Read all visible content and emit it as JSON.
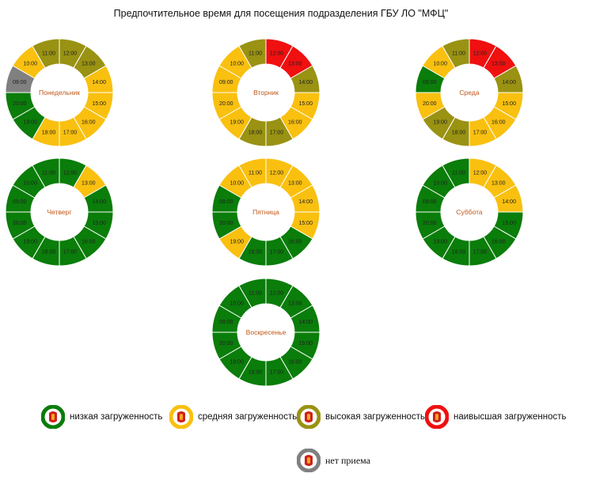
{
  "title": "Предпочтительное время для посещения подразделения ГБУ ЛО \"МФЦ\"",
  "colors": {
    "low": "#0a7d0a",
    "medium": "#f9c00f",
    "high": "#999212",
    "highest": "#f01010",
    "closed": "#808080",
    "day_label": "#c0581a",
    "separator": "#ffffff"
  },
  "legend": [
    {
      "key": "low",
      "label": "низкая загруженность"
    },
    {
      "key": "medium",
      "label": "средняя загруженность"
    },
    {
      "key": "high",
      "label": "высокая загруженность"
    },
    {
      "key": "highest",
      "label": "наивысшая загруженность"
    },
    {
      "key": "closed",
      "label": "нет приема"
    }
  ],
  "chart_data": {
    "type": "donut",
    "hours": [
      "09:00",
      "10:00",
      "11:00",
      "12:00",
      "13:00",
      "14:00",
      "15:00",
      "16:00",
      "17:00",
      "18:00",
      "19:00",
      "20:00"
    ],
    "days": [
      {
        "name": "Понедельник",
        "loads": [
          "closed",
          "medium",
          "high",
          "high",
          "high",
          "medium",
          "medium",
          "medium",
          "medium",
          "medium",
          "low",
          "low"
        ]
      },
      {
        "name": "Вторник",
        "loads": [
          "medium",
          "medium",
          "high",
          "highest",
          "highest",
          "high",
          "medium",
          "medium",
          "high",
          "high",
          "medium",
          "medium"
        ]
      },
      {
        "name": "Среда",
        "loads": [
          "low",
          "medium",
          "high",
          "highest",
          "highest",
          "high",
          "medium",
          "medium",
          "medium",
          "high",
          "high",
          "medium"
        ]
      },
      {
        "name": "Четверг",
        "loads": [
          "low",
          "low",
          "low",
          "low",
          "medium",
          "low",
          "low",
          "low",
          "low",
          "low",
          "low",
          "low"
        ]
      },
      {
        "name": "Пятница",
        "loads": [
          "low",
          "medium",
          "medium",
          "medium",
          "medium",
          "medium",
          "medium",
          "low",
          "low",
          "low",
          "medium",
          "low"
        ]
      },
      {
        "name": "Суббота",
        "loads": [
          "low",
          "low",
          "low",
          "medium",
          "medium",
          "medium",
          "low",
          "low",
          "low",
          "low",
          "low",
          "low"
        ]
      },
      {
        "name": "Воскресенье",
        "loads": [
          "low",
          "low",
          "low",
          "low",
          "low",
          "low",
          "low",
          "low",
          "low",
          "low",
          "low",
          "low"
        ]
      }
    ]
  }
}
